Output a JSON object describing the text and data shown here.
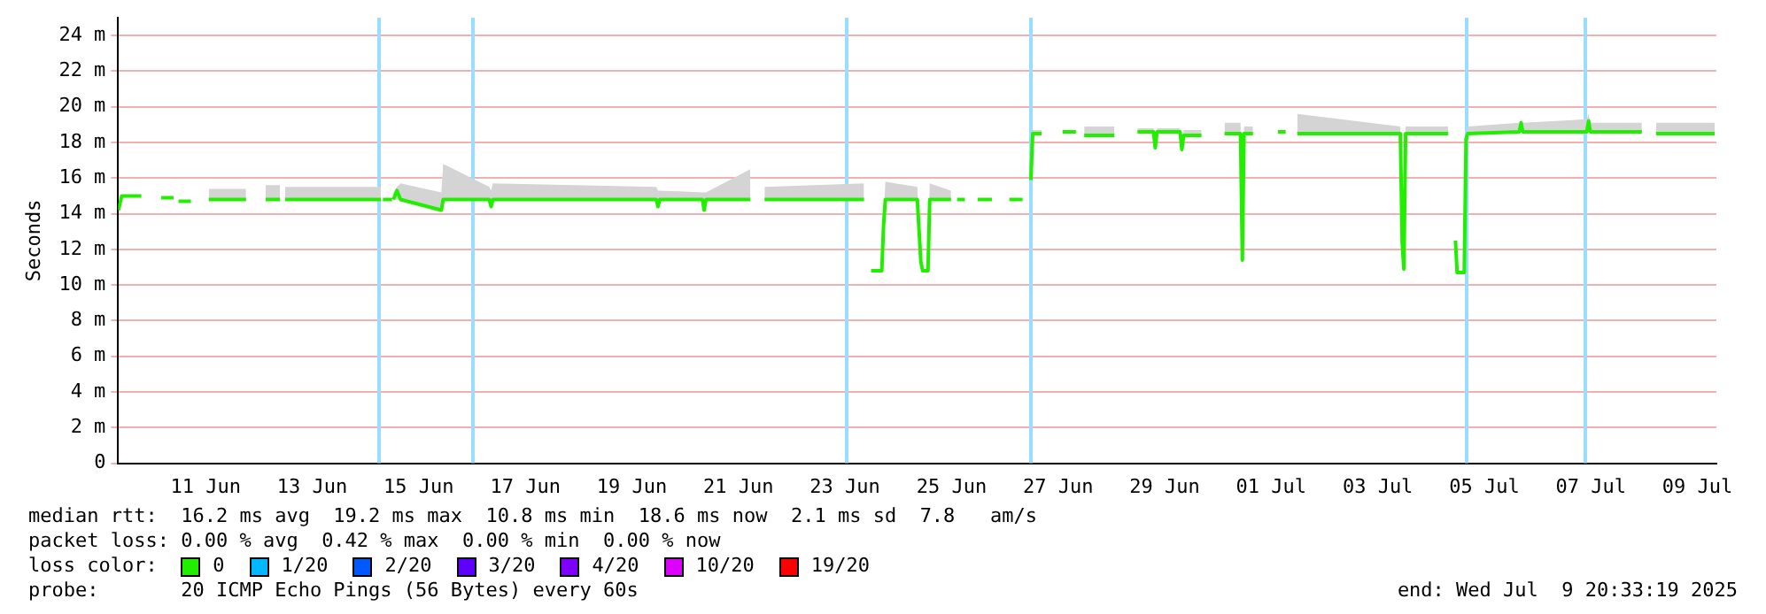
{
  "chart_data": {
    "type": "line",
    "ylabel": "Seconds",
    "legend_title": "loss color:",
    "legend": "bottom",
    "grid": "y",
    "marker": "none",
    "line_style": "solid",
    "xlim": [
      "2025-06-09T20:33",
      "2025-07-09T20:33"
    ],
    "xticks": [
      {
        "value": "2025-06-11T12:00",
        "label": "11 Jun"
      },
      {
        "value": "2025-06-13T12:00",
        "label": "13 Jun"
      },
      {
        "value": "2025-06-15T12:00",
        "label": "15 Jun"
      },
      {
        "value": "2025-06-17T12:00",
        "label": "17 Jun"
      },
      {
        "value": "2025-06-19T12:00",
        "label": "19 Jun"
      },
      {
        "value": "2025-06-21T12:00",
        "label": "21 Jun"
      },
      {
        "value": "2025-06-23T12:00",
        "label": "23 Jun"
      },
      {
        "value": "2025-06-25T12:00",
        "label": "25 Jun"
      },
      {
        "value": "2025-06-27T12:00",
        "label": "27 Jun"
      },
      {
        "value": "2025-06-29T12:00",
        "label": "29 Jun"
      },
      {
        "value": "2025-07-01T12:00",
        "label": "01 Jul"
      },
      {
        "value": "2025-07-03T12:00",
        "label": "03 Jul"
      },
      {
        "value": "2025-07-05T12:00",
        "label": "05 Jul"
      },
      {
        "value": "2025-07-07T12:00",
        "label": "07 Jul"
      },
      {
        "value": "2025-07-09T12:00",
        "label": "09 Jul"
      }
    ],
    "ylim": [
      0,
      25
    ],
    "yticks": [
      0,
      {
        "value": 2,
        "label": "2 m"
      },
      {
        "value": 4,
        "label": "4 m"
      },
      {
        "value": 6,
        "label": "6 m"
      },
      {
        "value": 8,
        "label": "8 m"
      },
      {
        "value": 10,
        "label": "10 m"
      },
      {
        "value": 12,
        "label": "12 m"
      },
      {
        "value": 14,
        "label": "14 m"
      },
      {
        "value": 16,
        "label": "16 m"
      },
      {
        "value": 18,
        "label": "18 m"
      },
      {
        "value": 20,
        "label": "20 m"
      },
      {
        "value": 22,
        "label": "22 m"
      },
      {
        "value": 24,
        "label": "24 m"
      }
    ],
    "series": [
      {
        "name": "0",
        "color": "#22ee00",
        "x": [
          "2025-06-09T20:40",
          "2025-06-09T22:10",
          "2025-06-10T07:00",
          "2025-06-10T13:00",
          "2025-06-10T16:00",
          "2025-06-10T21:30",
          "2025-06-10T22:00",
          "2025-06-10T23:45",
          "2025-06-11T05:20",
          "2025-06-11T09:00",
          "2025-06-11T13:22",
          "2025-06-12T06:10",
          "2025-06-12T12:00",
          "2025-06-12T15:00",
          "2025-06-12T21:30",
          "2025-06-12T22:00",
          "2025-06-12T23:45",
          "2025-06-14T18:57",
          "2025-06-14T19:40",
          "2025-06-14T19:50",
          "2025-06-14T23:55",
          "2025-06-15T00:10",
          "2025-06-15T00:33",
          "2025-06-15T02:10",
          "2025-06-15T03:46",
          "2025-06-15T22:10",
          "2025-06-15T22:58",
          "2025-06-16T19:45",
          "2025-06-16T20:34",
          "2025-06-16T21:22",
          "2025-06-19T23:00",
          "2025-06-19T23:45",
          "2025-06-20T00:33",
          "2025-06-20T19:45",
          "2025-06-20T20:34",
          "2025-06-20T21:22",
          "2025-06-21T17:21",
          "2025-06-21T20:00",
          "2025-06-21T23:45",
          "2025-06-23T20:34",
          "2025-06-23T22:00",
          "2025-06-23T23:45",
          "2025-06-24T04:34",
          "2025-06-24T05:21",
          "2025-06-24T06:10",
          "2025-06-24T20:34",
          "2025-06-24T22:10",
          "2025-06-24T23:00",
          "2025-06-25T01:22",
          "2025-06-25T02:10",
          "2025-06-25T11:45",
          "2025-06-25T13:00",
          "2025-06-25T14:30",
          "2025-06-25T18:00",
          "2025-06-25T20:00",
          "2025-06-25T23:45",
          "2025-06-26T06:10",
          "2025-06-26T12:00",
          "2025-06-26T14:00",
          "2025-06-26T20:00",
          "2025-06-26T21:00",
          "2025-06-26T23:45",
          "2025-06-27T00:33",
          "2025-06-27T04:34",
          "2025-06-27T12:00",
          "2025-06-27T14:00",
          "2025-06-27T20:00",
          "2025-06-27T21:00",
          "2025-06-27T23:45",
          "2025-06-28T13:22",
          "2025-06-28T18:00",
          "2025-06-28T23:45",
          "2025-06-29T06:58",
          "2025-06-29T07:45",
          "2025-06-29T08:34",
          "2025-06-29T18:57",
          "2025-06-29T19:45",
          "2025-06-29T20:34",
          "2025-06-30T04:34",
          "2025-06-30T10:00",
          "2025-06-30T14:58",
          "2025-06-30T22:10",
          "2025-06-30T23:00",
          "2025-06-30T23:45",
          "2025-07-01T03:46",
          "2025-07-01T10:00",
          "2025-07-01T15:00",
          "2025-07-01T18:30",
          "2025-07-01T20:00",
          "2025-07-01T23:45",
          "2025-07-03T22:10",
          "2025-07-03T23:00",
          "2025-07-03T23:45",
          "2025-07-04T00:33",
          "2025-07-04T19:45",
          "2025-07-04T21:00",
          "2025-07-04T23:00",
          "2025-07-04T23:45",
          "2025-07-05T02:57",
          "2025-07-05T03:46",
          "2025-07-05T04:34",
          "2025-07-06T03:46",
          "2025-07-06T04:34",
          "2025-07-06T05:21",
          "2025-07-07T10:09",
          "2025-07-07T10:58",
          "2025-07-07T11:45",
          "2025-07-08T10:58",
          "2025-07-08T14:00",
          "2025-07-08T17:21",
          "2025-07-09T19:45"
        ],
        "values": [
          14.2,
          15,
          15,
          null,
          14.9,
          14.9,
          null,
          14.7,
          14.7,
          null,
          14.8,
          14.8,
          null,
          14.8,
          14.8,
          null,
          14.8,
          14.8,
          null,
          14.8,
          14.8,
          null,
          14.8,
          15.3,
          14.8,
          14.2,
          14.8,
          14.8,
          14.4,
          14.8,
          14.8,
          14.4,
          14.8,
          14.8,
          14.2,
          14.8,
          14.8,
          null,
          14.8,
          14.8,
          null,
          10.8,
          10.8,
          13.3,
          14.8,
          14.8,
          11.3,
          10.8,
          10.8,
          14.8,
          14.8,
          null,
          14.8,
          14.8,
          null,
          14.8,
          14.8,
          null,
          14.8,
          14.8,
          null,
          15.9,
          18.5,
          18.5,
          null,
          18.6,
          18.6,
          null,
          18.4,
          18.4,
          null,
          18.6,
          18.6,
          17.7,
          18.6,
          18.6,
          17.6,
          18.4,
          18.4,
          null,
          18.5,
          18.5,
          11.4,
          18.5,
          18.5,
          null,
          18.6,
          18.6,
          null,
          18.5,
          18.5,
          12.4,
          10.9,
          18.5,
          18.5,
          null,
          12.5,
          10.7,
          10.7,
          18.2,
          18.5,
          18.6,
          19.1,
          18.6,
          18.6,
          19.2,
          18.6,
          18.6,
          null,
          18.5,
          18.5
        ],
        "lower": [
          null,
          null,
          null,
          null,
          null,
          null,
          null,
          null,
          null,
          null,
          14.8,
          14.8,
          null,
          14.8,
          14.8,
          null,
          14.8,
          14.8,
          null,
          null,
          null,
          null,
          14.8,
          14.8,
          14.8,
          14.2,
          14.8,
          14.8,
          14.4,
          14.8,
          14.8,
          14.4,
          14.8,
          14.8,
          14.2,
          14.8,
          14.8,
          null,
          14.8,
          14.8,
          null,
          10.8,
          10.8,
          13.3,
          14.8,
          14.8,
          11.3,
          10.8,
          10.8,
          14.8,
          14.8,
          null,
          null,
          null,
          null,
          null,
          null,
          null,
          null,
          null,
          null,
          15.9,
          18.5,
          18.5,
          null,
          null,
          null,
          null,
          18.4,
          18.4,
          null,
          18.6,
          18.6,
          17.7,
          18.6,
          18.6,
          17.6,
          18.4,
          18.4,
          null,
          18.5,
          18.5,
          11.4,
          18.5,
          18.5,
          null,
          null,
          null,
          null,
          18.5,
          18.5,
          12.4,
          10.9,
          18.5,
          18.5,
          null,
          12.5,
          10.7,
          10.7,
          18.2,
          18.5,
          18.6,
          18.6,
          18.6,
          18.6,
          18.6,
          18.6,
          18.6,
          null,
          18.5,
          18.5
        ],
        "upper": [
          null,
          null,
          null,
          null,
          null,
          null,
          null,
          null,
          null,
          null,
          15.4,
          15.4,
          null,
          15.6,
          15.6,
          null,
          15.5,
          15.5,
          null,
          null,
          null,
          null,
          15.2,
          15.5,
          15.7,
          15.2,
          16.8,
          15.5,
          15.3,
          15.7,
          15.5,
          15.3,
          15.3,
          15.2,
          15.2,
          15.2,
          16.5,
          null,
          15.5,
          15.7,
          null,
          10.8,
          10.8,
          13.3,
          15.8,
          15.5,
          11.3,
          10.8,
          10.8,
          15.7,
          15.3,
          null,
          null,
          null,
          null,
          null,
          null,
          null,
          null,
          null,
          null,
          15.9,
          18.7,
          18.7,
          null,
          null,
          null,
          null,
          18.9,
          18.9,
          null,
          18.8,
          18.8,
          17.7,
          18.8,
          18.8,
          17.6,
          18.7,
          18.7,
          null,
          19.1,
          19.1,
          11.4,
          18.9,
          18.9,
          null,
          null,
          null,
          null,
          19.6,
          18.9,
          12.4,
          10.9,
          18.9,
          18.9,
          null,
          12.5,
          10.7,
          10.7,
          18.2,
          18.9,
          19.1,
          19.3,
          19.1,
          19.3,
          19.6,
          19.1,
          19.1,
          null,
          19.1,
          19.1
        ]
      },
      {
        "name": "1/20",
        "color": "#00b8ff"
      },
      {
        "name": "2/20",
        "color": "#0059ff"
      },
      {
        "name": "3/20",
        "color": "#5e00ff"
      },
      {
        "name": "4/20",
        "color": "#7e00ff"
      },
      {
        "name": "10/20",
        "color": "#dd00ff"
      },
      {
        "name": "19/20",
        "color": "#ff0000"
      }
    ],
    "ref_lines": [
      {
        "axis": "x",
        "value": "2025-06-14T18:10",
        "color": "#99ddff"
      },
      {
        "axis": "x",
        "value": "2025-06-16T12:33",
        "color": "#99ddff"
      },
      {
        "axis": "x",
        "value": "2025-06-23T12:33",
        "color": "#99ddff"
      },
      {
        "axis": "x",
        "value": "2025-06-26T23:45",
        "color": "#99ddff"
      },
      {
        "axis": "x",
        "value": "2025-07-05T03:46",
        "color": "#99ddff"
      },
      {
        "axis": "x",
        "value": "2025-07-07T09:21",
        "color": "#99ddff"
      }
    ],
    "annotations": [
      "median rtt:  16.2 ms avg  19.2 ms max  10.8 ms min  18.6 ms now  2.1 ms sd  7.8   am/s",
      "packet loss: 0.00 % avg  0.42 % max  0.00 % min  0.00 % now",
      "probe:       20 ICMP Echo Pings (56 Bytes) every 60s",
      "end: Wed Jul  9 20:33:19 2025"
    ]
  }
}
